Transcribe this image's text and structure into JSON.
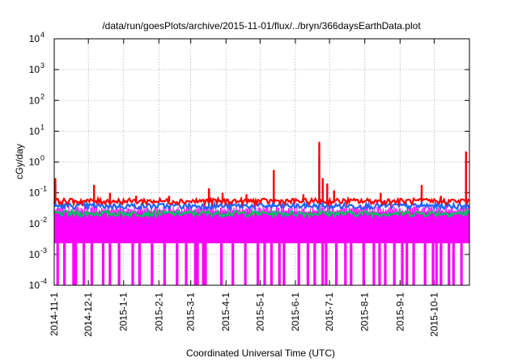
{
  "chart_data": {
    "type": "area",
    "title": "/data/run/goesPlots/archive/2015-11-01/flux/../bryn/366daysEarthData.plot",
    "xlabel": "Coordinated Universal Time (UTC)",
    "ylabel": "cGy/day",
    "yscale": "log",
    "ylim": [
      0.0001,
      10000
    ],
    "xlim": [
      "2014-11-01",
      "2015-11-01"
    ],
    "grid": true,
    "legend": "none",
    "x_ticks": [
      "2014-11-1",
      "2014-12-1",
      "2015-1-1",
      "2015-2-1",
      "2015-3-1",
      "2015-4-1",
      "2015-5-1",
      "2015-6-1",
      "2015-7-1",
      "2015-8-1",
      "2015-9-1",
      "2015-10-1"
    ],
    "y_ticks": [
      {
        "value": 0.0001,
        "base": "10",
        "exp": "-4"
      },
      {
        "value": 0.001,
        "base": "10",
        "exp": "-3"
      },
      {
        "value": 0.01,
        "base": "10",
        "exp": "-2"
      },
      {
        "value": 0.1,
        "base": "10",
        "exp": "-1"
      },
      {
        "value": 1,
        "base": "10",
        "exp": "0"
      },
      {
        "value": 10,
        "base": "10",
        "exp": "1"
      },
      {
        "value": 100,
        "base": "10",
        "exp": "2"
      },
      {
        "value": 1000,
        "base": "10",
        "exp": "3"
      },
      {
        "value": 10000,
        "base": "10",
        "exp": "4"
      }
    ],
    "series": [
      {
        "color": "#ff0000",
        "baseline": 0.05,
        "spikes": [
          {
            "x": "2014-11-02",
            "y": 0.3
          },
          {
            "x": "2014-12-06",
            "y": 0.18
          },
          {
            "x": "2014-12-20",
            "y": 0.1
          },
          {
            "x": "2015-01-12",
            "y": 0.08
          },
          {
            "x": "2015-02-10",
            "y": 0.08
          },
          {
            "x": "2015-03-17",
            "y": 0.14
          },
          {
            "x": "2015-03-29",
            "y": 0.1
          },
          {
            "x": "2015-04-19",
            "y": 0.09
          },
          {
            "x": "2015-05-13",
            "y": 0.55
          },
          {
            "x": "2015-06-08",
            "y": 0.09
          },
          {
            "x": "2015-06-22",
            "y": 4.5
          },
          {
            "x": "2015-06-25",
            "y": 0.3
          },
          {
            "x": "2015-06-29",
            "y": 0.2
          },
          {
            "x": "2015-07-05",
            "y": 0.12
          },
          {
            "x": "2015-08-15",
            "y": 0.1
          },
          {
            "x": "2015-09-20",
            "y": 0.18
          },
          {
            "x": "2015-10-07",
            "y": 0.08
          },
          {
            "x": "2015-10-29",
            "y": 2.2
          }
        ]
      },
      {
        "color": "#1e64ff",
        "baseline": 0.035,
        "spikes": [
          {
            "x": "2014-11-02",
            "y": 0.18
          },
          {
            "x": "2014-12-06",
            "y": 0.12
          },
          {
            "x": "2015-03-17",
            "y": 0.09
          },
          {
            "x": "2015-05-13",
            "y": 0.35
          },
          {
            "x": "2015-06-22",
            "y": 1.4
          },
          {
            "x": "2015-06-25",
            "y": 0.18
          },
          {
            "x": "2015-06-29",
            "y": 0.12
          },
          {
            "x": "2015-09-20",
            "y": 0.1
          },
          {
            "x": "2015-10-29",
            "y": 1.3
          }
        ]
      },
      {
        "color": "#00c060",
        "baseline": 0.02,
        "spikes": [
          {
            "x": "2015-06-22",
            "y": 0.15
          },
          {
            "x": "2015-10-29",
            "y": 0.3
          }
        ]
      },
      {
        "color": "#ff00ff",
        "baseline": 0.015,
        "floor": 0.0023,
        "dropouts": [
          "2014-11-04",
          "2014-11-10",
          "2014-11-18",
          "2014-11-20",
          "2014-11-27",
          "2014-12-04",
          "2014-12-14",
          "2014-12-20",
          "2014-12-28",
          "2015-01-09",
          "2015-01-15",
          "2015-01-26",
          "2015-02-06",
          "2015-02-17",
          "2015-02-25",
          "2015-03-05",
          "2015-03-06",
          "2015-03-07",
          "2015-03-12",
          "2015-03-14",
          "2015-03-28",
          "2015-04-07",
          "2015-04-18",
          "2015-04-29",
          "2015-05-05",
          "2015-05-11",
          "2015-05-18",
          "2015-05-22",
          "2015-06-04",
          "2015-06-12",
          "2015-06-18",
          "2015-06-25",
          "2015-06-28",
          "2015-07-07",
          "2015-07-15",
          "2015-07-20",
          "2015-07-31",
          "2015-08-09",
          "2015-08-14",
          "2015-08-19",
          "2015-08-27",
          "2015-09-03",
          "2015-09-07",
          "2015-09-13",
          "2015-09-23",
          "2015-09-30",
          "2015-10-03",
          "2015-10-07",
          "2015-10-14",
          "2015-10-18",
          "2015-10-25"
        ]
      }
    ]
  }
}
